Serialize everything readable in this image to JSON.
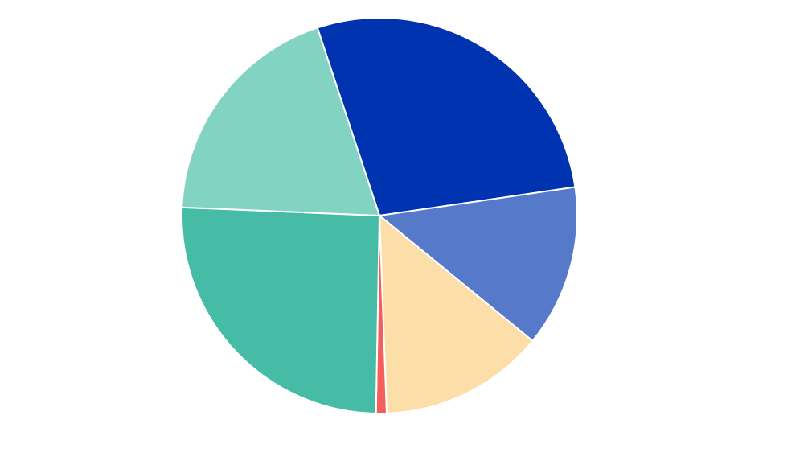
{
  "chart_data": {
    "type": "pie",
    "title": "",
    "legend": "none",
    "start_angle_deg": -18.3,
    "direction": "clockwise",
    "slices": [
      {
        "value": 29.0,
        "color": "#0033b0"
      },
      {
        "value": 13.8,
        "color": "#5679c9"
      },
      {
        "value": 14.1,
        "color": "#fbdea8"
      },
      {
        "value": 0.9,
        "color": "#f25f5c"
      },
      {
        "value": 26.5,
        "color": "#46bba6"
      },
      {
        "value": 20.1,
        "color": "#83d3c2"
      }
    ]
  }
}
